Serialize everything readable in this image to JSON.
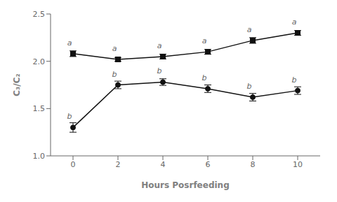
{
  "chart_data": {
    "type": "line",
    "xlabel": "Hours Posrfeeding",
    "ylabel": "C₃/C₂",
    "x": [
      0,
      2,
      4,
      6,
      8,
      10
    ],
    "xlim": [
      -1,
      11
    ],
    "xticks": [
      0,
      2,
      4,
      6,
      8,
      10
    ],
    "ylim": [
      1,
      2.5
    ],
    "yticks": [
      {
        "value": 1,
        "label": "1.0"
      },
      1.5,
      {
        "value": 2,
        "label": "2.0"
      },
      2.5
    ],
    "grid": false,
    "series": [
      {
        "color": "#111111",
        "marker": "square",
        "line_style": "solid",
        "values": [
          2.08,
          2.02,
          2.05,
          2.1,
          2.22,
          2.3
        ],
        "error": [
          0.03,
          0.02,
          0.025,
          0.025,
          0.03,
          0.025
        ],
        "annotations": [
          "a",
          "a",
          "a",
          "a",
          "a",
          "a"
        ]
      },
      {
        "color": "#111111",
        "marker": "circle",
        "line_style": "solid",
        "values": [
          1.3,
          1.75,
          1.78,
          1.71,
          1.62,
          1.69
        ],
        "error": [
          0.05,
          0.04,
          0.035,
          0.04,
          0.04,
          0.04
        ],
        "annotations": [
          "b",
          "b",
          "b",
          "b",
          "b",
          "b"
        ]
      }
    ]
  }
}
